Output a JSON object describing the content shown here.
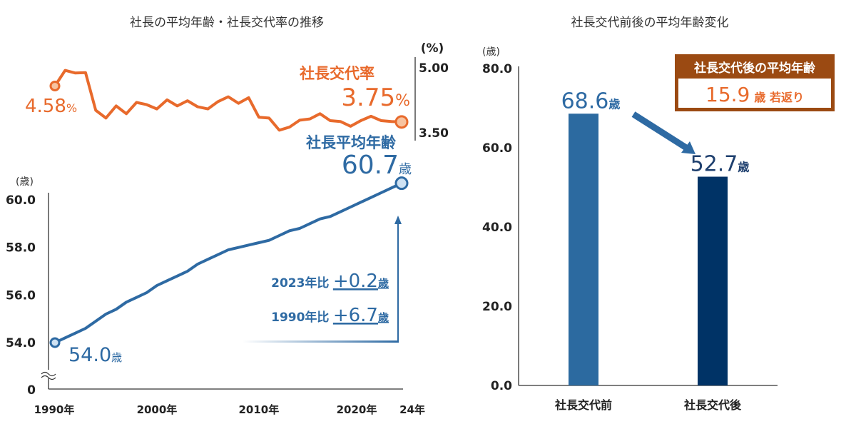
{
  "colors": {
    "rate_line": "#e86a2c",
    "age_line": "#2e6aa3",
    "bar_before": "#2c6aa0",
    "bar_after": "#003366",
    "badge_brown": "#9b4a12",
    "axis": "#333333"
  },
  "chart_data": [
    {
      "type": "line",
      "title": "社長の平均年齢・社長交代率の推移",
      "x": [
        1990,
        1991,
        1992,
        1993,
        1994,
        1995,
        1996,
        1997,
        1998,
        1999,
        2000,
        2001,
        2002,
        2003,
        2004,
        2005,
        2006,
        2007,
        2008,
        2009,
        2010,
        2011,
        2012,
        2013,
        2014,
        2015,
        2016,
        2017,
        2018,
        2019,
        2020,
        2021,
        2022,
        2023,
        2024
      ],
      "x_tick_labels": [
        "1990年",
        "2000年",
        "2010年",
        "2020年",
        "24年"
      ],
      "x_tick_values": [
        1990,
        2000,
        2010,
        2020,
        2024
      ],
      "series": [
        {
          "name": "社長交代率",
          "unit_label": "(%)",
          "axis": "right",
          "ylim": [
            3.5,
            5.0
          ],
          "y_tick_labels": [
            "5.00",
            "3.50"
          ],
          "y_tick_values": [
            5.0,
            3.5
          ],
          "values": [
            4.58,
            4.94,
            4.88,
            4.89,
            4.02,
            3.84,
            4.12,
            3.94,
            4.2,
            4.15,
            4.05,
            4.26,
            4.12,
            4.24,
            4.1,
            4.05,
            4.22,
            4.33,
            4.18,
            4.31,
            3.86,
            3.84,
            3.56,
            3.63,
            3.79,
            3.82,
            3.94,
            3.78,
            3.76,
            3.65,
            3.78,
            3.88,
            3.78,
            3.76,
            3.75
          ],
          "start_label": "4.58",
          "start_suffix": "%",
          "label": "社長交代率",
          "end_label": "3.75",
          "end_suffix": "%"
        },
        {
          "name": "社長平均年齢",
          "unit_label": "(歳)",
          "axis": "left",
          "ylim": [
            53.8,
            60.0
          ],
          "y_tick_labels": [
            "60.0",
            "58.0",
            "56.0",
            "54.0",
            "0"
          ],
          "y_tick_values": [
            60.0,
            58.0,
            56.0,
            54.0
          ],
          "axis_break": true,
          "values": [
            54.0,
            54.2,
            54.4,
            54.6,
            54.9,
            55.2,
            55.4,
            55.7,
            55.9,
            56.1,
            56.4,
            56.6,
            56.8,
            57.0,
            57.3,
            57.5,
            57.7,
            57.9,
            58.0,
            58.1,
            58.2,
            58.3,
            58.5,
            58.7,
            58.8,
            59.0,
            59.2,
            59.3,
            59.5,
            59.7,
            59.9,
            60.1,
            60.3,
            60.5,
            60.7
          ],
          "label": "社長平均年齢",
          "start_label": "54.0",
          "start_suffix": "歳",
          "end_label": "60.7",
          "end_suffix": "歳"
        }
      ],
      "annotations": [
        {
          "prefix": "2023年比",
          "value": "+0.2",
          "suffix": "歳"
        },
        {
          "prefix": "1990年比",
          "value": "+6.7",
          "suffix": "歳"
        }
      ]
    },
    {
      "type": "bar",
      "title": "社長交代前後の平均年齢変化",
      "unit_label": "(歳)",
      "categories": [
        "社長交代前",
        "社長交代後"
      ],
      "values": [
        68.6,
        52.7
      ],
      "value_labels": [
        "68.6",
        "52.7"
      ],
      "value_suffix": "歳",
      "ylim": [
        0,
        80
      ],
      "y_tick_labels": [
        "80.0",
        "60.0",
        "40.0",
        "20.0",
        "0.0"
      ],
      "y_tick_values": [
        80,
        60,
        40,
        20,
        0
      ],
      "badge": {
        "title": "社長交代後の平均年齢",
        "value": "15.9",
        "suffix": "歳 若返り"
      }
    }
  ]
}
